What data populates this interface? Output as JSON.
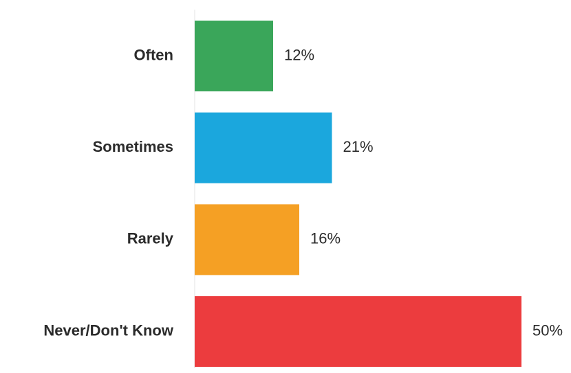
{
  "chart_data": {
    "type": "bar",
    "orientation": "horizontal",
    "categories": [
      "Often",
      "Sometimes",
      "Rarely",
      "Never/Don't Know"
    ],
    "values": [
      12,
      21,
      16,
      50
    ],
    "value_labels": [
      "12%",
      "21%",
      "16%",
      "50%"
    ],
    "colors": [
      "#3aa65a",
      "#1ba7dd",
      "#f5a024",
      "#ec3c3e"
    ],
    "title": "",
    "xlabel": "",
    "ylabel": "",
    "xlim": [
      0,
      50
    ],
    "grid": false,
    "legend": "none"
  }
}
